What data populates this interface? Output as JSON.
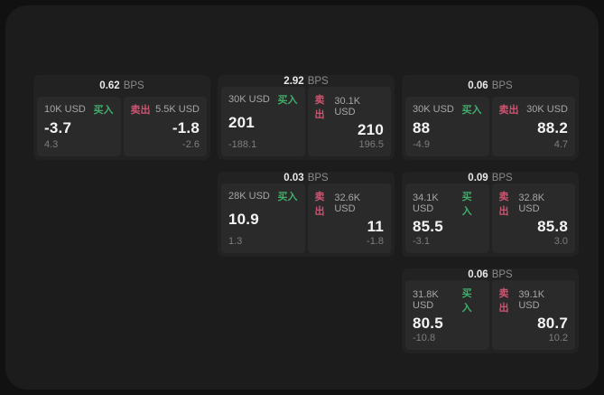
{
  "labels": {
    "bps_unit": "BPS"
  },
  "colors": {
    "buy_green": "#3fae6a",
    "sell_red": "#cd5471",
    "page_background": "#111111",
    "surface_background": "#1c1c1c",
    "card_background": "#222222",
    "tile_background": "#2a2a2a"
  },
  "cards": [
    {
      "bps": "0.62",
      "buy": {
        "size": "10K USD",
        "side": "买入",
        "value": "-3.7",
        "sub": "4.3"
      },
      "sell": {
        "side": "卖出",
        "size": "5.5K USD",
        "value": "-1.8",
        "sub": "-2.6"
      }
    },
    {
      "bps": "2.92",
      "buy": {
        "size": "30K USD",
        "side": "买入",
        "value": "201",
        "sub": "-188.1"
      },
      "sell": {
        "side": "卖出",
        "size": "30.1K USD",
        "value": "210",
        "sub": "196.5"
      }
    },
    {
      "bps": "0.06",
      "buy": {
        "size": "30K USD",
        "side": "买入",
        "value": "88",
        "sub": "-4.9"
      },
      "sell": {
        "side": "卖出",
        "size": "30K USD",
        "value": "88.2",
        "sub": "4.7"
      }
    },
    {
      "bps": "0.03",
      "buy": {
        "size": "28K USD",
        "side": "买入",
        "value": "10.9",
        "sub": "1.3"
      },
      "sell": {
        "side": "卖出",
        "size": "32.6K USD",
        "value": "11",
        "sub": "-1.8"
      }
    },
    {
      "bps": "0.09",
      "buy": {
        "size": "34.1K USD",
        "side": "买入",
        "value": "85.5",
        "sub": "-3.1"
      },
      "sell": {
        "side": "卖出",
        "size": "32.8K USD",
        "value": "85.8",
        "sub": "3.0"
      }
    },
    {
      "bps": "0.06",
      "buy": {
        "size": "31.8K USD",
        "side": "买入",
        "value": "80.5",
        "sub": "-10.8"
      },
      "sell": {
        "side": "卖出",
        "size": "39.1K USD",
        "value": "80.7",
        "sub": "10.2"
      }
    }
  ]
}
